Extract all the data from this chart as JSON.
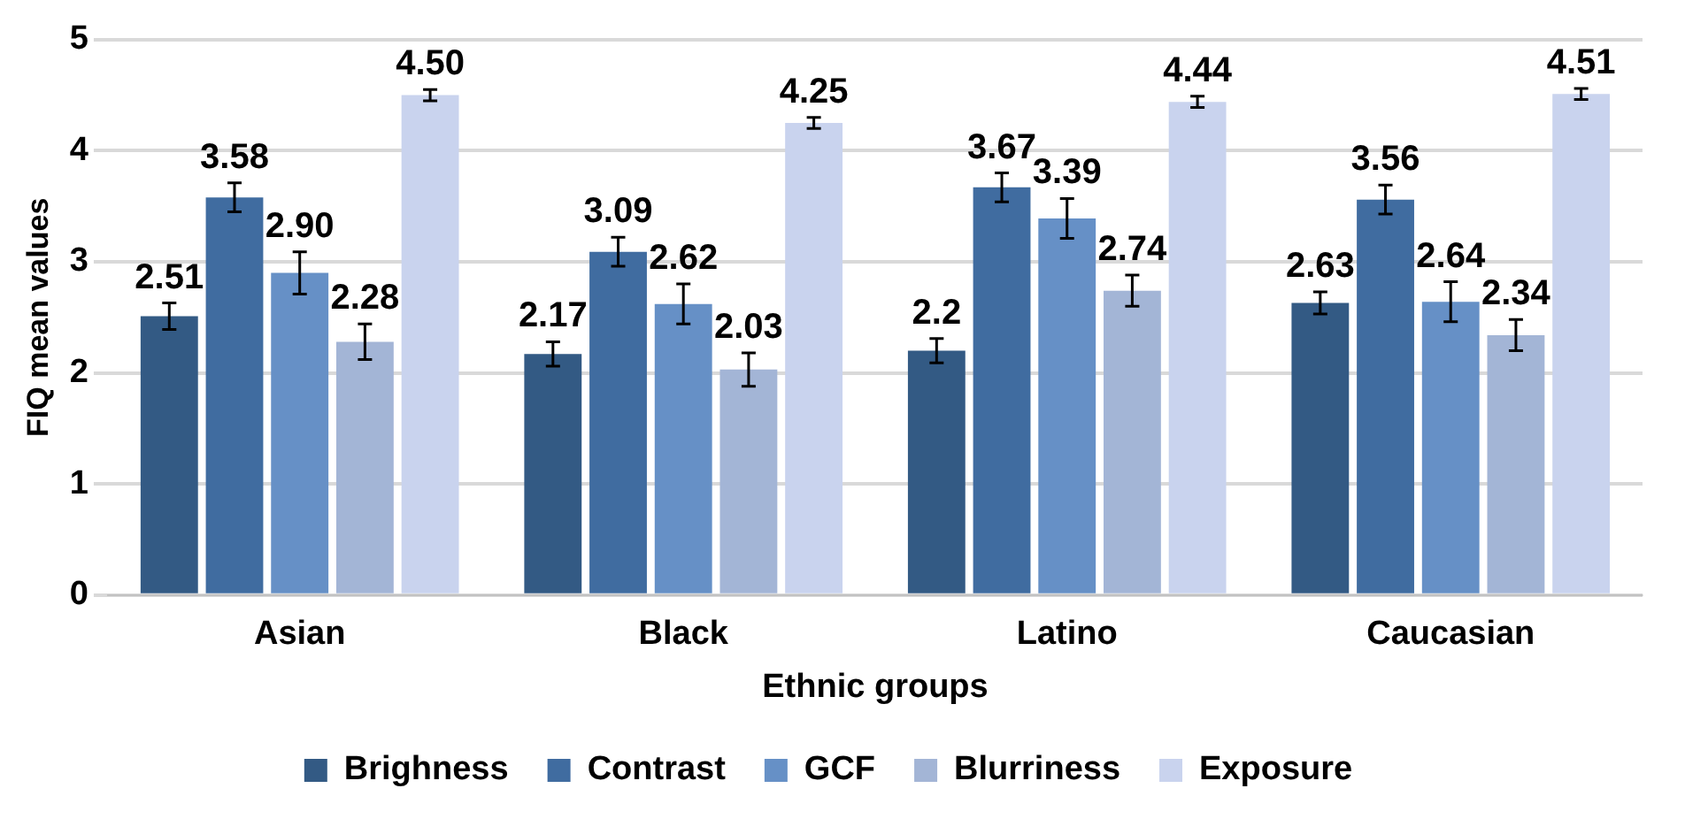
{
  "chart_data": {
    "type": "bar",
    "xlabel": "Ethnic groups",
    "ylabel": "FIQ mean values",
    "categories": [
      "Asian",
      "Black",
      "Latino",
      "Caucasian"
    ],
    "series": [
      {
        "name": "Brighness",
        "color": "#335a84",
        "values": [
          2.51,
          2.17,
          2.2,
          2.63
        ],
        "errors": [
          0.12,
          0.11,
          0.11,
          0.1
        ],
        "value_labels": [
          "2.51",
          "2.17",
          "2.2",
          "2.63"
        ]
      },
      {
        "name": "Contrast",
        "color": "#406ca0",
        "values": [
          3.58,
          3.09,
          3.67,
          3.56
        ],
        "errors": [
          0.13,
          0.13,
          0.13,
          0.13
        ],
        "value_labels": [
          "3.58",
          "3.09",
          "3.67",
          "3.56"
        ]
      },
      {
        "name": "GCF",
        "color": "#6690c6",
        "values": [
          2.9,
          2.62,
          3.39,
          2.64
        ],
        "errors": [
          0.19,
          0.18,
          0.18,
          0.18
        ],
        "value_labels": [
          "2.90",
          "2.62",
          "3.39",
          "2.64"
        ]
      },
      {
        "name": "Blurriness",
        "color": "#a3b5d6",
        "values": [
          2.28,
          2.03,
          2.74,
          2.34
        ],
        "errors": [
          0.16,
          0.15,
          0.14,
          0.14
        ],
        "value_labels": [
          "2.28",
          "2.03",
          "2.74",
          "2.34"
        ]
      },
      {
        "name": "Exposure",
        "color": "#c9d3ee",
        "values": [
          4.5,
          4.25,
          4.44,
          4.51
        ],
        "errors": [
          0.05,
          0.05,
          0.05,
          0.05
        ],
        "value_labels": [
          "4.50",
          "4.25",
          "4.44",
          "4.51"
        ]
      }
    ],
    "ylim": [
      0,
      5
    ],
    "yticks": [
      0,
      1,
      2,
      3,
      4,
      5
    ],
    "grid": "y",
    "legend": "bottom"
  }
}
